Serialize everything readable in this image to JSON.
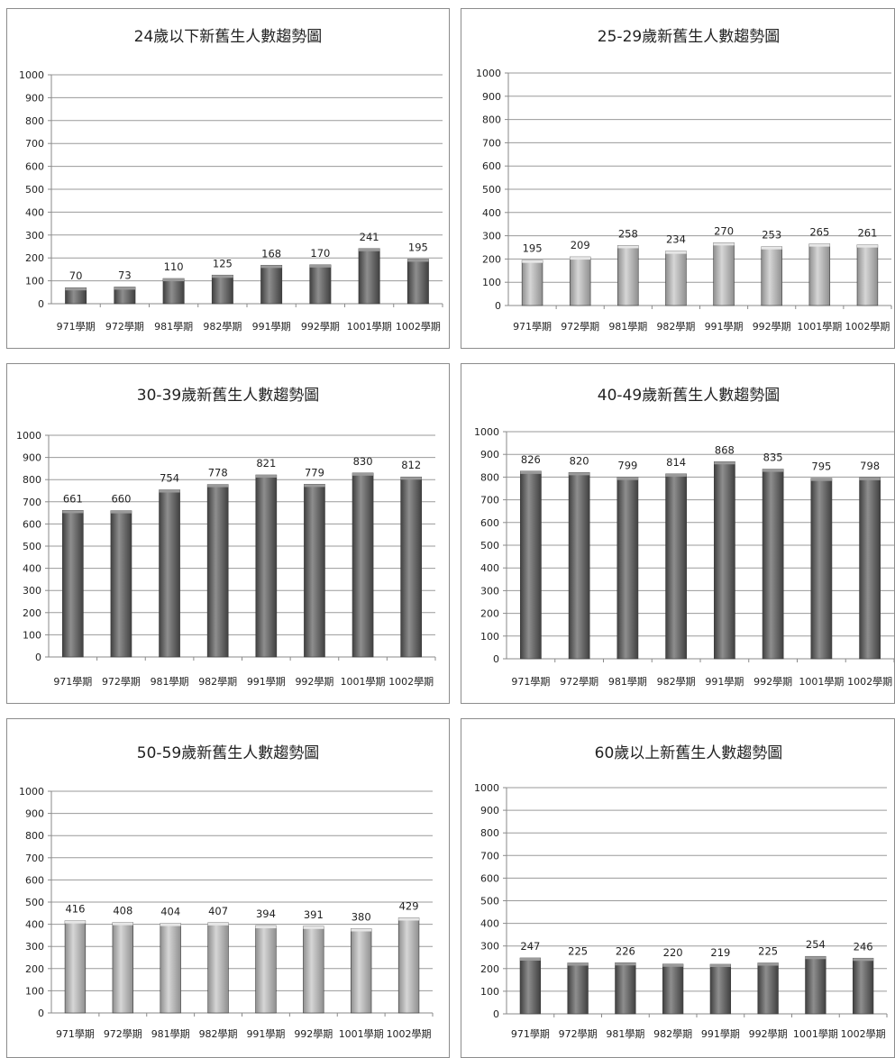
{
  "chart_data": [
    {
      "type": "bar",
      "title": "24歲以下新舊生人數趨勢圖",
      "categories": [
        "971學期",
        "972學期",
        "981學期",
        "982學期",
        "991學期",
        "992學期",
        "1001學期",
        "1002學期"
      ],
      "values": [
        70,
        73,
        110,
        125,
        168,
        170,
        241,
        195
      ],
      "ylim": [
        0,
        1000
      ],
      "yticks": [
        0,
        100,
        200,
        300,
        400,
        500,
        600,
        700,
        800,
        900,
        1000
      ],
      "grid": true,
      "bar_color": "#5c5c5c"
    },
    {
      "type": "bar",
      "title": "25-29歲新舊生人數趨勢圖",
      "categories": [
        "971學期",
        "972學期",
        "981學期",
        "982學期",
        "991學期",
        "992學期",
        "1001學期",
        "1002學期"
      ],
      "values": [
        195,
        209,
        258,
        234,
        270,
        253,
        265,
        261
      ],
      "ylim": [
        0,
        1000
      ],
      "yticks": [
        0,
        100,
        200,
        300,
        400,
        500,
        600,
        700,
        800,
        900,
        1000
      ],
      "grid": true,
      "bar_color": "#a8a8a8"
    },
    {
      "type": "bar",
      "title": "30-39歲新舊生人數趨勢圖",
      "categories": [
        "971學期",
        "972學期",
        "981學期",
        "982學期",
        "991學期",
        "992學期",
        "1001學期",
        "1002學期"
      ],
      "values": [
        661,
        660,
        754,
        778,
        821,
        779,
        830,
        812
      ],
      "ylim": [
        0,
        1000
      ],
      "yticks": [
        0,
        100,
        200,
        300,
        400,
        500,
        600,
        700,
        800,
        900,
        1000
      ],
      "grid": true,
      "bar_color": "#5c5c5c"
    },
    {
      "type": "bar",
      "title": "40-49歲新舊生人數趨勢圖",
      "categories": [
        "971學期",
        "972學期",
        "981學期",
        "982學期",
        "991學期",
        "992學期",
        "1001學期",
        "1002學期"
      ],
      "values": [
        826,
        820,
        799,
        814,
        868,
        835,
        795,
        798
      ],
      "ylim": [
        0,
        1000
      ],
      "yticks": [
        0,
        100,
        200,
        300,
        400,
        500,
        600,
        700,
        800,
        900,
        1000
      ],
      "grid": true,
      "bar_color": "#5c5c5c"
    },
    {
      "type": "bar",
      "title": "50-59歲新舊生人數趨勢圖",
      "categories": [
        "971學期",
        "972學期",
        "981學期",
        "982學期",
        "991學期",
        "992學期",
        "1001學期",
        "1002學期"
      ],
      "values": [
        416,
        408,
        404,
        407,
        394,
        391,
        380,
        429
      ],
      "ylim": [
        0,
        1000
      ],
      "yticks": [
        0,
        100,
        200,
        300,
        400,
        500,
        600,
        700,
        800,
        900,
        1000
      ],
      "grid": true,
      "bar_color": "#a8a8a8"
    },
    {
      "type": "bar",
      "title": "60歲以上新舊生人數趨勢圖",
      "categories": [
        "971學期",
        "972學期",
        "981學期",
        "982學期",
        "991學期",
        "992學期",
        "1001學期",
        "1002學期"
      ],
      "values": [
        247,
        225,
        226,
        220,
        219,
        225,
        254,
        246
      ],
      "ylim": [
        0,
        1000
      ],
      "yticks": [
        0,
        100,
        200,
        300,
        400,
        500,
        600,
        700,
        800,
        900,
        1000
      ],
      "grid": true,
      "bar_color": "#5c5c5c"
    }
  ]
}
